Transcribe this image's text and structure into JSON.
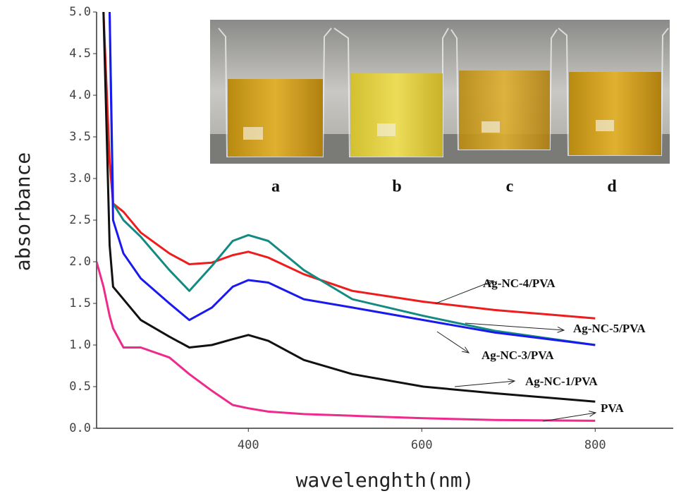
{
  "chart_data": {
    "type": "line",
    "x_label": "wavelenghth(nm)",
    "y_label": "absorbance",
    "x": [
      225,
      233,
      240,
      244,
      256,
      276,
      309,
      332,
      358,
      382,
      400,
      423,
      464,
      520,
      602,
      684,
      800
    ],
    "series": [
      {
        "name": "Ag-NC-4/PVA",
        "color": "#ee1c1c",
        "values": [
          null,
          5.0,
          3.2,
          2.7,
          2.6,
          2.35,
          2.1,
          1.97,
          1.99,
          2.08,
          2.12,
          2.05,
          1.85,
          1.65,
          1.52,
          1.42,
          1.32
        ]
      },
      {
        "name": "Ag-NC-5/PVA",
        "color": "#138a82",
        "values": [
          null,
          null,
          5.0,
          2.7,
          2.5,
          2.3,
          1.9,
          1.65,
          1.95,
          2.25,
          2.32,
          2.25,
          1.9,
          1.55,
          1.35,
          1.17,
          1.0
        ]
      },
      {
        "name": "Ag-NC-3/PVA",
        "color": "#1a1aee",
        "values": [
          null,
          null,
          5.0,
          2.5,
          2.1,
          1.8,
          1.5,
          1.3,
          1.45,
          1.7,
          1.78,
          1.75,
          1.55,
          1.45,
          1.3,
          1.15,
          1.0
        ]
      },
      {
        "name": "Ag-NC-1/PVA",
        "color": "#111111",
        "values": [
          null,
          5.0,
          2.2,
          1.7,
          1.55,
          1.3,
          1.1,
          0.97,
          1.0,
          1.07,
          1.12,
          1.05,
          0.82,
          0.65,
          0.5,
          0.42,
          0.32
        ]
      },
      {
        "name": "PVA",
        "color": "#ee2a8c",
        "values": [
          2.0,
          1.7,
          1.35,
          1.2,
          0.97,
          0.97,
          0.85,
          0.65,
          0.45,
          0.28,
          0.24,
          0.2,
          0.17,
          0.15,
          0.12,
          0.1,
          0.09
        ]
      }
    ],
    "xlim": [
      225,
      890
    ],
    "xticks": [
      400,
      600,
      800
    ],
    "ylim": [
      0,
      5
    ],
    "yticks": [
      {
        "value": 0,
        "label": "0.0"
      },
      {
        "value": 0.5,
        "label": "0.5"
      },
      {
        "value": 1,
        "label": "1.0"
      },
      {
        "value": 1.5,
        "label": "1.5"
      },
      {
        "value": 2,
        "label": "2.0"
      },
      {
        "value": 2.5,
        "label": "2.5"
      },
      {
        "value": 3,
        "label": "3.0"
      },
      {
        "value": 3.5,
        "label": "3.5"
      },
      {
        "value": 4,
        "label": "4.0"
      },
      {
        "value": 4.5,
        "label": "4.5"
      },
      {
        "value": 5,
        "label": "5.0"
      }
    ],
    "inset_labels": [
      "a",
      "b",
      "c",
      "d"
    ]
  }
}
